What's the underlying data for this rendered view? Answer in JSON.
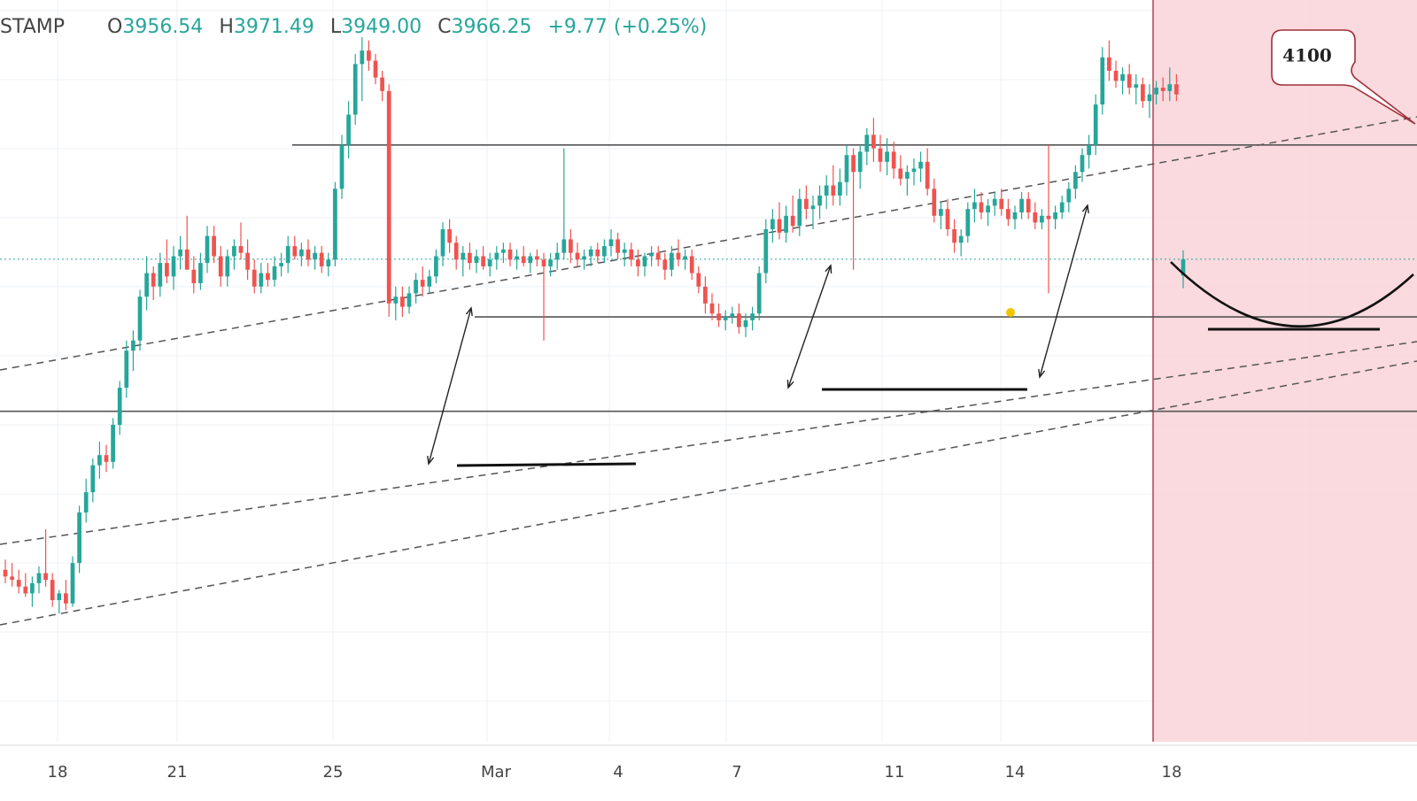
{
  "legend": {
    "symbol": "STAMP",
    "open_key": "O",
    "open": "3956.54",
    "high_key": "H",
    "high": "3971.49",
    "low_key": "L",
    "low": "3949.00",
    "close_key": "C",
    "close": "3966.25",
    "change": "+9.77",
    "change_pct": "(+0.25%)"
  },
  "colors": {
    "up": "#26a69a",
    "down": "#ef5350",
    "grid": "#eef1f5",
    "highlight_zone": "#f9d3d8",
    "highlight_border": "#b04050",
    "callout_border": "#a0303a",
    "lastprice_line": "#26a69a"
  },
  "annotation": {
    "target_label": "4100"
  },
  "x_axis": {
    "ticks": [
      "18",
      "21",
      "25",
      "Mar",
      "4",
      "7",
      "11",
      "14",
      "18"
    ]
  },
  "chart_data": {
    "type": "candlestick",
    "title": "",
    "ticker_suffix": "STAMP",
    "x_ticks": [
      "18",
      "21",
      "25",
      "Mar",
      "4",
      "7",
      "11",
      "14",
      "18"
    ],
    "y_range": [
      3680,
      4120
    ],
    "last_candle": {
      "open": 3956.54,
      "high": 3971.49,
      "low": 3949.0,
      "close": 3966.25,
      "change": 9.77,
      "change_pct": 0.25
    },
    "horizontal_levels": [
      4034,
      3932,
      3876
    ],
    "target_level": 4100,
    "grid": true,
    "highlight_zone": "future period from ~17 Mar onward",
    "candles": [
      {
        "o": 3782,
        "h": 3788,
        "l": 3774,
        "c": 3778
      },
      {
        "o": 3778,
        "h": 3786,
        "l": 3772,
        "c": 3776
      },
      {
        "o": 3776,
        "h": 3782,
        "l": 3768,
        "c": 3772
      },
      {
        "o": 3772,
        "h": 3780,
        "l": 3766,
        "c": 3768
      },
      {
        "o": 3768,
        "h": 3778,
        "l": 3760,
        "c": 3774
      },
      {
        "o": 3774,
        "h": 3784,
        "l": 3768,
        "c": 3780
      },
      {
        "o": 3780,
        "h": 3806,
        "l": 3772,
        "c": 3776
      },
      {
        "o": 3776,
        "h": 3780,
        "l": 3760,
        "c": 3764
      },
      {
        "o": 3764,
        "h": 3770,
        "l": 3756,
        "c": 3768
      },
      {
        "o": 3768,
        "h": 3776,
        "l": 3758,
        "c": 3762
      },
      {
        "o": 3762,
        "h": 3790,
        "l": 3760,
        "c": 3786
      },
      {
        "o": 3786,
        "h": 3820,
        "l": 3780,
        "c": 3816
      },
      {
        "o": 3816,
        "h": 3836,
        "l": 3810,
        "c": 3828
      },
      {
        "o": 3828,
        "h": 3848,
        "l": 3822,
        "c": 3844
      },
      {
        "o": 3844,
        "h": 3858,
        "l": 3836,
        "c": 3850
      },
      {
        "o": 3850,
        "h": 3856,
        "l": 3840,
        "c": 3846
      },
      {
        "o": 3846,
        "h": 3872,
        "l": 3842,
        "c": 3868
      },
      {
        "o": 3868,
        "h": 3894,
        "l": 3862,
        "c": 3890
      },
      {
        "o": 3890,
        "h": 3918,
        "l": 3884,
        "c": 3912
      },
      {
        "o": 3912,
        "h": 3924,
        "l": 3900,
        "c": 3918
      },
      {
        "o": 3918,
        "h": 3948,
        "l": 3912,
        "c": 3944
      },
      {
        "o": 3944,
        "h": 3968,
        "l": 3936,
        "c": 3958
      },
      {
        "o": 3958,
        "h": 3962,
        "l": 3942,
        "c": 3950
      },
      {
        "o": 3950,
        "h": 3970,
        "l": 3944,
        "c": 3964
      },
      {
        "o": 3964,
        "h": 3978,
        "l": 3952,
        "c": 3956
      },
      {
        "o": 3956,
        "h": 3974,
        "l": 3948,
        "c": 3968
      },
      {
        "o": 3968,
        "h": 3980,
        "l": 3960,
        "c": 3972
      },
      {
        "o": 3972,
        "h": 3992,
        "l": 3964,
        "c": 3960
      },
      {
        "o": 3960,
        "h": 3968,
        "l": 3946,
        "c": 3952
      },
      {
        "o": 3952,
        "h": 3970,
        "l": 3948,
        "c": 3964
      },
      {
        "o": 3964,
        "h": 3986,
        "l": 3958,
        "c": 3980
      },
      {
        "o": 3980,
        "h": 3986,
        "l": 3964,
        "c": 3968
      },
      {
        "o": 3968,
        "h": 3974,
        "l": 3950,
        "c": 3956
      },
      {
        "o": 3956,
        "h": 3972,
        "l": 3950,
        "c": 3968
      },
      {
        "o": 3968,
        "h": 3978,
        "l": 3960,
        "c": 3974
      },
      {
        "o": 3974,
        "h": 3988,
        "l": 3966,
        "c": 3970
      },
      {
        "o": 3970,
        "h": 3978,
        "l": 3954,
        "c": 3960
      },
      {
        "o": 3960,
        "h": 3966,
        "l": 3946,
        "c": 3950
      },
      {
        "o": 3950,
        "h": 3964,
        "l": 3946,
        "c": 3958
      },
      {
        "o": 3958,
        "h": 3964,
        "l": 3950,
        "c": 3954
      },
      {
        "o": 3954,
        "h": 3968,
        "l": 3950,
        "c": 3962
      },
      {
        "o": 3962,
        "h": 3970,
        "l": 3956,
        "c": 3964
      },
      {
        "o": 3964,
        "h": 3980,
        "l": 3958,
        "c": 3974
      },
      {
        "o": 3974,
        "h": 3980,
        "l": 3966,
        "c": 3968
      },
      {
        "o": 3968,
        "h": 3976,
        "l": 3962,
        "c": 3972
      },
      {
        "o": 3972,
        "h": 3978,
        "l": 3962,
        "c": 3966
      },
      {
        "o": 3966,
        "h": 3974,
        "l": 3960,
        "c": 3970
      },
      {
        "o": 3970,
        "h": 3974,
        "l": 3958,
        "c": 3962
      },
      {
        "o": 3962,
        "h": 3970,
        "l": 3956,
        "c": 3966
      },
      {
        "o": 3966,
        "h": 4012,
        "l": 3962,
        "c": 4008
      },
      {
        "o": 4008,
        "h": 4040,
        "l": 4002,
        "c": 4034
      },
      {
        "o": 4034,
        "h": 4060,
        "l": 4026,
        "c": 4052
      },
      {
        "o": 4052,
        "h": 4088,
        "l": 4046,
        "c": 4082
      },
      {
        "o": 4082,
        "h": 4098,
        "l": 4060,
        "c": 4090
      },
      {
        "o": 4090,
        "h": 4096,
        "l": 4078,
        "c": 4084
      },
      {
        "o": 4084,
        "h": 4088,
        "l": 4070,
        "c": 4074
      },
      {
        "o": 4074,
        "h": 4078,
        "l": 4060,
        "c": 4066
      },
      {
        "o": 4066,
        "h": 4070,
        "l": 3932,
        "c": 3940
      },
      {
        "o": 3940,
        "h": 3950,
        "l": 3930,
        "c": 3944
      },
      {
        "o": 3944,
        "h": 3950,
        "l": 3932,
        "c": 3938
      },
      {
        "o": 3938,
        "h": 3950,
        "l": 3934,
        "c": 3946
      },
      {
        "o": 3946,
        "h": 3958,
        "l": 3940,
        "c": 3954
      },
      {
        "o": 3954,
        "h": 3962,
        "l": 3944,
        "c": 3950
      },
      {
        "o": 3950,
        "h": 3960,
        "l": 3946,
        "c": 3956
      },
      {
        "o": 3956,
        "h": 3972,
        "l": 3952,
        "c": 3968
      },
      {
        "o": 3968,
        "h": 3988,
        "l": 3962,
        "c": 3984
      },
      {
        "o": 3984,
        "h": 3990,
        "l": 3970,
        "c": 3976
      },
      {
        "o": 3976,
        "h": 3980,
        "l": 3960,
        "c": 3966
      },
      {
        "o": 3966,
        "h": 3974,
        "l": 3956,
        "c": 3970
      },
      {
        "o": 3970,
        "h": 3976,
        "l": 3960,
        "c": 3964
      },
      {
        "o": 3964,
        "h": 3972,
        "l": 3958,
        "c": 3968
      },
      {
        "o": 3968,
        "h": 3974,
        "l": 3960,
        "c": 3962
      },
      {
        "o": 3962,
        "h": 3970,
        "l": 3956,
        "c": 3966
      },
      {
        "o": 3966,
        "h": 3974,
        "l": 3960,
        "c": 3970
      },
      {
        "o": 3970,
        "h": 3976,
        "l": 3964,
        "c": 3972
      },
      {
        "o": 3972,
        "h": 3976,
        "l": 3962,
        "c": 3966
      },
      {
        "o": 3966,
        "h": 3972,
        "l": 3960,
        "c": 3968
      },
      {
        "o": 3968,
        "h": 3974,
        "l": 3962,
        "c": 3964
      },
      {
        "o": 3964,
        "h": 3970,
        "l": 3958,
        "c": 3968
      },
      {
        "o": 3968,
        "h": 3972,
        "l": 3962,
        "c": 3966
      },
      {
        "o": 3966,
        "h": 3970,
        "l": 3918,
        "c": 3962
      },
      {
        "o": 3962,
        "h": 3970,
        "l": 3956,
        "c": 3966
      },
      {
        "o": 3966,
        "h": 3976,
        "l": 3960,
        "c": 3970
      },
      {
        "o": 3970,
        "h": 4032,
        "l": 3966,
        "c": 3978
      },
      {
        "o": 3978,
        "h": 3984,
        "l": 3964,
        "c": 3970
      },
      {
        "o": 3970,
        "h": 3976,
        "l": 3962,
        "c": 3966
      },
      {
        "o": 3966,
        "h": 3972,
        "l": 3960,
        "c": 3968
      },
      {
        "o": 3968,
        "h": 3974,
        "l": 3962,
        "c": 3972
      },
      {
        "o": 3972,
        "h": 3976,
        "l": 3964,
        "c": 3968
      },
      {
        "o": 3968,
        "h": 3978,
        "l": 3964,
        "c": 3974
      },
      {
        "o": 3974,
        "h": 3984,
        "l": 3968,
        "c": 3978
      },
      {
        "o": 3978,
        "h": 3982,
        "l": 3966,
        "c": 3970
      },
      {
        "o": 3970,
        "h": 3976,
        "l": 3962,
        "c": 3972
      },
      {
        "o": 3972,
        "h": 3976,
        "l": 3962,
        "c": 3966
      },
      {
        "o": 3966,
        "h": 3972,
        "l": 3956,
        "c": 3962
      },
      {
        "o": 3962,
        "h": 3970,
        "l": 3956,
        "c": 3968
      },
      {
        "o": 3968,
        "h": 3974,
        "l": 3962,
        "c": 3970
      },
      {
        "o": 3970,
        "h": 3974,
        "l": 3962,
        "c": 3966
      },
      {
        "o": 3966,
        "h": 3970,
        "l": 3954,
        "c": 3960
      },
      {
        "o": 3960,
        "h": 3974,
        "l": 3956,
        "c": 3970
      },
      {
        "o": 3970,
        "h": 3978,
        "l": 3962,
        "c": 3966
      },
      {
        "o": 3966,
        "h": 3972,
        "l": 3960,
        "c": 3968
      },
      {
        "o": 3968,
        "h": 3972,
        "l": 3954,
        "c": 3958
      },
      {
        "o": 3958,
        "h": 3962,
        "l": 3946,
        "c": 3950
      },
      {
        "o": 3950,
        "h": 3956,
        "l": 3934,
        "c": 3940
      },
      {
        "o": 3940,
        "h": 3946,
        "l": 3930,
        "c": 3934
      },
      {
        "o": 3934,
        "h": 3940,
        "l": 3926,
        "c": 3930
      },
      {
        "o": 3930,
        "h": 3936,
        "l": 3924,
        "c": 3932
      },
      {
        "o": 3932,
        "h": 3938,
        "l": 3928,
        "c": 3934
      },
      {
        "o": 3934,
        "h": 3940,
        "l": 3922,
        "c": 3926
      },
      {
        "o": 3926,
        "h": 3934,
        "l": 3920,
        "c": 3930
      },
      {
        "o": 3930,
        "h": 3938,
        "l": 3924,
        "c": 3934
      },
      {
        "o": 3934,
        "h": 3962,
        "l": 3930,
        "c": 3958
      },
      {
        "o": 3958,
        "h": 3990,
        "l": 3952,
        "c": 3984
      },
      {
        "o": 3984,
        "h": 3996,
        "l": 3976,
        "c": 3990
      },
      {
        "o": 3990,
        "h": 4000,
        "l": 3978,
        "c": 3982
      },
      {
        "o": 3982,
        "h": 3998,
        "l": 3976,
        "c": 3992
      },
      {
        "o": 3992,
        "h": 4004,
        "l": 3982,
        "c": 3986
      },
      {
        "o": 3986,
        "h": 4008,
        "l": 3980,
        "c": 4002
      },
      {
        "o": 4002,
        "h": 4010,
        "l": 3990,
        "c": 3996
      },
      {
        "o": 3996,
        "h": 4004,
        "l": 3984,
        "c": 3998
      },
      {
        "o": 3998,
        "h": 4010,
        "l": 3990,
        "c": 4004
      },
      {
        "o": 4004,
        "h": 4016,
        "l": 3996,
        "c": 4010
      },
      {
        "o": 4010,
        "h": 4022,
        "l": 3998,
        "c": 4004
      },
      {
        "o": 4004,
        "h": 4020,
        "l": 3998,
        "c": 4012
      },
      {
        "o": 4012,
        "h": 4034,
        "l": 4004,
        "c": 4028
      },
      {
        "o": 4028,
        "h": 4032,
        "l": 3960,
        "c": 4018
      },
      {
        "o": 4018,
        "h": 4034,
        "l": 4008,
        "c": 4030
      },
      {
        "o": 4030,
        "h": 4044,
        "l": 4022,
        "c": 4040
      },
      {
        "o": 4040,
        "h": 4050,
        "l": 4024,
        "c": 4032
      },
      {
        "o": 4032,
        "h": 4040,
        "l": 4018,
        "c": 4024
      },
      {
        "o": 4024,
        "h": 4038,
        "l": 4016,
        "c": 4030
      },
      {
        "o": 4030,
        "h": 4036,
        "l": 4014,
        "c": 4020
      },
      {
        "o": 4020,
        "h": 4028,
        "l": 4010,
        "c": 4014
      },
      {
        "o": 4014,
        "h": 4022,
        "l": 4004,
        "c": 4018
      },
      {
        "o": 4018,
        "h": 4026,
        "l": 4010,
        "c": 4020
      },
      {
        "o": 4020,
        "h": 4030,
        "l": 4012,
        "c": 4024
      },
      {
        "o": 4024,
        "h": 4032,
        "l": 4004,
        "c": 4008
      },
      {
        "o": 4008,
        "h": 4014,
        "l": 3988,
        "c": 3992
      },
      {
        "o": 3992,
        "h": 4000,
        "l": 3984,
        "c": 3996
      },
      {
        "o": 3996,
        "h": 4002,
        "l": 3980,
        "c": 3984
      },
      {
        "o": 3984,
        "h": 3990,
        "l": 3970,
        "c": 3976
      },
      {
        "o": 3976,
        "h": 3984,
        "l": 3968,
        "c": 3980
      },
      {
        "o": 3980,
        "h": 4000,
        "l": 3976,
        "c": 3996
      },
      {
        "o": 3996,
        "h": 4008,
        "l": 3988,
        "c": 4000
      },
      {
        "o": 4000,
        "h": 4006,
        "l": 3990,
        "c": 3994
      },
      {
        "o": 3994,
        "h": 4002,
        "l": 3986,
        "c": 3998
      },
      {
        "o": 3998,
        "h": 4006,
        "l": 3992,
        "c": 4002
      },
      {
        "o": 4002,
        "h": 4008,
        "l": 3992,
        "c": 3996
      },
      {
        "o": 3996,
        "h": 4002,
        "l": 3986,
        "c": 3990
      },
      {
        "o": 3990,
        "h": 3998,
        "l": 3984,
        "c": 3994
      },
      {
        "o": 3994,
        "h": 4006,
        "l": 3990,
        "c": 4002
      },
      {
        "o": 4002,
        "h": 4006,
        "l": 3990,
        "c": 3994
      },
      {
        "o": 3994,
        "h": 4000,
        "l": 3984,
        "c": 3988
      },
      {
        "o": 3988,
        "h": 3996,
        "l": 3984,
        "c": 3992
      },
      {
        "o": 3992,
        "h": 4034,
        "l": 3946,
        "c": 3990
      },
      {
        "o": 3990,
        "h": 3998,
        "l": 3984,
        "c": 3994
      },
      {
        "o": 3994,
        "h": 4004,
        "l": 3990,
        "c": 4000
      },
      {
        "o": 4000,
        "h": 4012,
        "l": 3994,
        "c": 4008
      },
      {
        "o": 4008,
        "h": 4022,
        "l": 4002,
        "c": 4018
      },
      {
        "o": 4018,
        "h": 4032,
        "l": 4012,
        "c": 4028
      },
      {
        "o": 4028,
        "h": 4040,
        "l": 4020,
        "c": 4034
      },
      {
        "o": 4034,
        "h": 4064,
        "l": 4028,
        "c": 4058
      },
      {
        "o": 4058,
        "h": 4092,
        "l": 4052,
        "c": 4086
      },
      {
        "o": 4086,
        "h": 4096,
        "l": 4072,
        "c": 4078
      },
      {
        "o": 4078,
        "h": 4084,
        "l": 4068,
        "c": 4072
      },
      {
        "o": 4072,
        "h": 4080,
        "l": 4064,
        "c": 4076
      },
      {
        "o": 4076,
        "h": 4082,
        "l": 4064,
        "c": 4068
      },
      {
        "o": 4068,
        "h": 4076,
        "l": 4058,
        "c": 4070
      },
      {
        "o": 4070,
        "h": 4074,
        "l": 4056,
        "c": 4060
      },
      {
        "o": 4060,
        "h": 4070,
        "l": 4050,
        "c": 4064
      },
      {
        "o": 4064,
        "h": 4072,
        "l": 4058,
        "c": 4068
      },
      {
        "o": 4068,
        "h": 4074,
        "l": 4060,
        "c": 4066
      },
      {
        "o": 4066,
        "h": 4080,
        "l": 4060,
        "c": 4070
      },
      {
        "o": 4070,
        "h": 4076,
        "l": 4060,
        "c": 4064
      },
      {
        "o": 3956.54,
        "h": 3971.49,
        "l": 3949.0,
        "c": 3966.25
      }
    ]
  }
}
